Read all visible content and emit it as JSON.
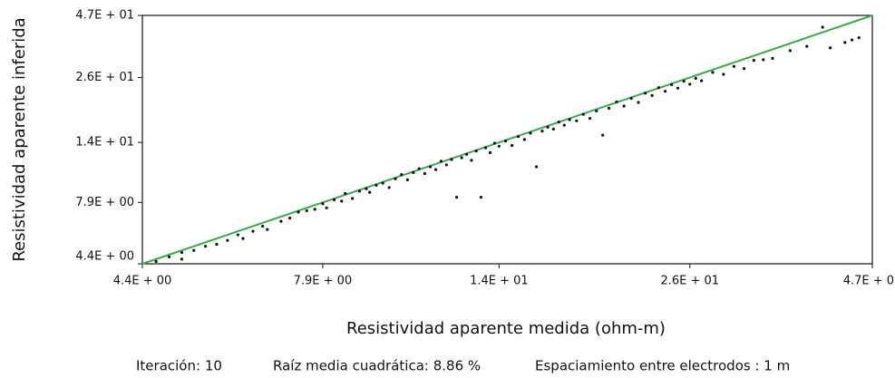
{
  "chart_data": {
    "type": "scatter",
    "xlabel": "Resistividad aparente medida (ohm-m)",
    "ylabel": "Resistividad aparente inferida",
    "log_x": true,
    "log_y": true,
    "xlim": [
      4.4,
      47
    ],
    "ylim": [
      4.4,
      47
    ],
    "xticks": [
      {
        "value": 4.4,
        "label": "4.4E + 00"
      },
      {
        "value": 7.9,
        "label": "7.9E + 00"
      },
      {
        "value": 14,
        "label": "1.4E + 01"
      },
      {
        "value": 26,
        "label": "2.6E + 01"
      },
      {
        "value": 47,
        "label": "4.7E + 01"
      }
    ],
    "yticks": [
      {
        "value": 4.4,
        "label": "4.4E + 00"
      },
      {
        "value": 7.9,
        "label": "7.9E + 00"
      },
      {
        "value": 14,
        "label": "1.4E + 01"
      },
      {
        "value": 26,
        "label": "2.6E + 01"
      },
      {
        "value": 47,
        "label": "4.7E + 01"
      }
    ],
    "color": "#111111",
    "diagonal_color": "#3aaa4a",
    "x": [
      4.6,
      4.8,
      5.0,
      5.0,
      5.2,
      5.4,
      5.6,
      5.8,
      6.0,
      6.1,
      6.3,
      6.5,
      6.6,
      6.9,
      7.1,
      7.3,
      7.5,
      7.7,
      7.9,
      8.0,
      8.2,
      8.4,
      8.5,
      8.7,
      8.9,
      9.1,
      9.2,
      9.4,
      9.6,
      9.8,
      10.0,
      10.2,
      10.4,
      10.6,
      10.8,
      11.0,
      11.2,
      11.4,
      11.6,
      11.8,
      12.0,
      12.2,
      12.4,
      12.6,
      12.8,
      13.0,
      13.2,
      13.4,
      13.6,
      13.8,
      14.0,
      14.3,
      14.6,
      14.9,
      15.2,
      15.5,
      15.8,
      16.1,
      16.4,
      16.7,
      17.0,
      17.3,
      17.6,
      18.0,
      18.4,
      18.8,
      19.2,
      19.6,
      20.0,
      20.5,
      21.0,
      21.5,
      22.0,
      22.5,
      23.0,
      23.5,
      24.0,
      24.5,
      25.0,
      25.5,
      26.0,
      26.5,
      27.0,
      28.0,
      29.0,
      30.0,
      31.0,
      32.0,
      33.0,
      34.0,
      36.0,
      38.0,
      40.0,
      41.0,
      43.0,
      44.0,
      45.0
    ],
    "values": [
      4.5,
      4.7,
      4.9,
      4.6,
      5.0,
      5.2,
      5.3,
      5.5,
      5.8,
      5.6,
      6.0,
      6.3,
      6.1,
      6.6,
      6.8,
      7.2,
      7.3,
      7.4,
      7.8,
      7.5,
      8.1,
      8.0,
      8.6,
      8.2,
      8.8,
      9.0,
      8.7,
      9.3,
      9.5,
      9.1,
      9.9,
      10.3,
      9.8,
      10.5,
      10.9,
      10.4,
      11.1,
      10.8,
      11.7,
      11.3,
      11.9,
      8.3,
      12.1,
      12.5,
      11.8,
      12.9,
      8.3,
      13.3,
      12.7,
      13.9,
      13.5,
      14.2,
      13.6,
      14.8,
      14.4,
      15.3,
      11.1,
      15.6,
      16.2,
      15.9,
      17.0,
      16.5,
      17.4,
      17.2,
      18.3,
      17.6,
      18.9,
      15.0,
      19.4,
      20.6,
      19.8,
      21.3,
      20.5,
      22.4,
      21.9,
      23.6,
      22.8,
      24.3,
      23.5,
      25.1,
      24.4,
      25.8,
      25.2,
      27.3,
      26.8,
      28.9,
      28.3,
      30.6,
      30.8,
      31.2,
      33.6,
      35.0,
      42.0,
      34.5,
      36.3,
      37.2,
      38.0
    ]
  },
  "footer": {
    "iteration": "Iteración: 10",
    "rms": "Raíz media cuadrática: 8.86 %",
    "spacing": "Espaciamiento entre electrodos : 1 m"
  }
}
